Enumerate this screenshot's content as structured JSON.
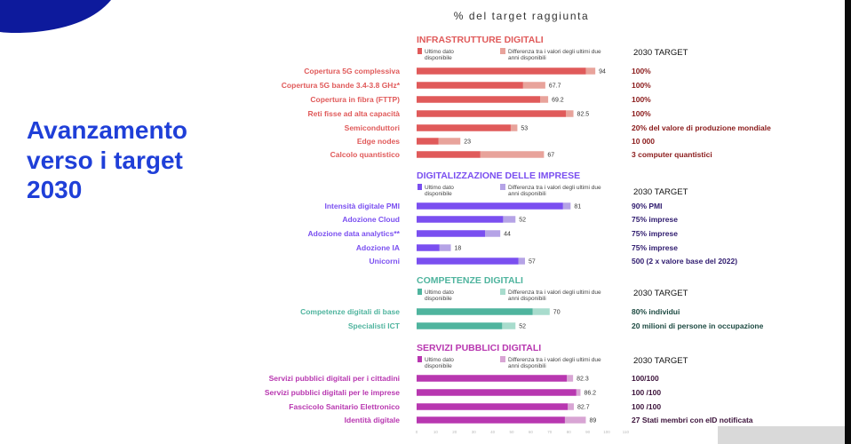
{
  "headline": [
    "Avanzamento",
    "verso i target",
    "2030"
  ],
  "chart_data": {
    "type": "bar",
    "orientation": "horizontal",
    "title": "% del target raggiunta",
    "xlim": [
      0,
      110
    ],
    "ticks": [
      0,
      10,
      20,
      30,
      40,
      50,
      60,
      70,
      80,
      90,
      100,
      110
    ],
    "legend": {
      "current": "Ultimo dato disponibile",
      "diff": "Differenza tra i valori degli ultimi due anni disponibili"
    },
    "target_header": "2030 TARGET",
    "sections": [
      {
        "title": "INFRASTRUTTURE DIGITALI",
        "color": "#e05a5a",
        "light": "#e8a39b",
        "target_color": "#8a1a1a",
        "items": [
          {
            "label": "Copertura 5G complessiva",
            "current": 89,
            "previous": 94,
            "value": "94",
            "target": "100%"
          },
          {
            "label": "Copertura 5G bande 3.4-3.8 GHz*",
            "current": 56,
            "previous": 67.7,
            "value": "67.7",
            "target": "100%"
          },
          {
            "label": "Copertura in fibra (FTTP)",
            "current": 65,
            "previous": 69.2,
            "value": "69.2",
            "target": "100%"
          },
          {
            "label": "Reti fisse ad alta capacità",
            "current": 78.5,
            "previous": 82.5,
            "value": "82.5",
            "target": "100%"
          },
          {
            "label": "Semiconduttori",
            "current": 49.5,
            "previous": 53,
            "value": "53",
            "target": "20% del valore di produzione mondiale"
          },
          {
            "label": "Edge nodes",
            "current": 11.5,
            "previous": 23,
            "value": "23",
            "target": "10 000"
          },
          {
            "label": "Calcolo quantistico",
            "current": 33.5,
            "previous": 67,
            "value": "67",
            "target": "3 computer quantistici"
          }
        ]
      },
      {
        "title": "DIGITALIZZAZIONE DELLE IMPRESE",
        "color": "#7a4ff0",
        "light": "#b5a3e6",
        "target_color": "#2e1a6e",
        "items": [
          {
            "label": "Intensità digitale PMI",
            "current": 77,
            "previous": 81,
            "value": "81",
            "target": "90% PMI"
          },
          {
            "label": "Adozione Cloud",
            "current": 45.5,
            "previous": 52,
            "value": "52",
            "target": "75% imprese"
          },
          {
            "label": "Adozione data analytics**",
            "current": 36,
            "previous": 44,
            "value": "44",
            "target": "75% imprese"
          },
          {
            "label": "Adozione IA",
            "current": 12,
            "previous": 18,
            "value": "18",
            "target": "75% imprese"
          },
          {
            "label": "Unicorni",
            "current": 53.5,
            "previous": 57,
            "value": "57",
            "target": "500 (2 x valore base del 2022)"
          }
        ]
      },
      {
        "title": "COMPETENZE DIGITALI",
        "color": "#4fb49e",
        "light": "#a8dccd",
        "target_color": "#1d4a42",
        "items": [
          {
            "label": "Competenze digitali di base",
            "current": 61,
            "previous": 70,
            "value": "70",
            "target": "80% individui"
          },
          {
            "label": "Specialisti ICT",
            "current": 45,
            "previous": 52,
            "value": "52",
            "target": "20 milioni di persone in occupazione"
          }
        ]
      },
      {
        "title": "SERVIZI PUBBLICI DIGITALI",
        "color": "#b837b0",
        "light": "#d8a5d4",
        "target_color": "#3b123a",
        "items": [
          {
            "label": "Servizi pubblici digitali per i cittadini",
            "current": 79,
            "previous": 82.3,
            "value": "82.3",
            "target": "100/100"
          },
          {
            "label": "Servizi pubblici digitali per le imprese",
            "current": 84,
            "previous": 86.2,
            "value": "86.2",
            "target": "100 /100"
          },
          {
            "label": "Fascicolo Sanitario Elettronico",
            "current": 79.5,
            "previous": 82.7,
            "value": "82.7",
            "target": "100 /100"
          },
          {
            "label": "Identità digitale",
            "current": 78,
            "previous": 89,
            "value": "89",
            "target": "27 Stati membri con eID notificata"
          }
        ]
      }
    ]
  }
}
